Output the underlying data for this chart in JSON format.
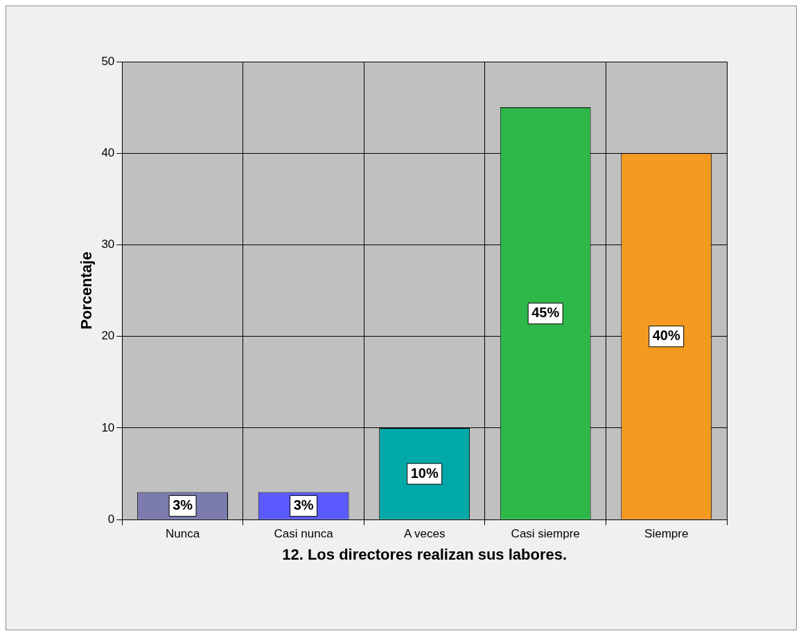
{
  "chart_data": {
    "type": "bar",
    "xlabel": "12. Los directores realizan sus labores.",
    "ylabel": "Porcentaje",
    "categories": [
      "Nunca",
      "Casi nunca",
      "A veces",
      "Casi siempre",
      "Siempre"
    ],
    "values": [
      3,
      3,
      10,
      45,
      40
    ],
    "colors": [
      "#7b7bb0",
      "#5a5aff",
      "#00a8a8",
      "#2eb84a",
      "#f59a20"
    ],
    "value_labels": [
      "3%",
      "3%",
      "10%",
      "45%",
      "40%"
    ],
    "ylim": [
      0,
      50
    ],
    "yticks": [
      0,
      10,
      20,
      30,
      40,
      50
    ],
    "grid": true,
    "legend": false
  }
}
